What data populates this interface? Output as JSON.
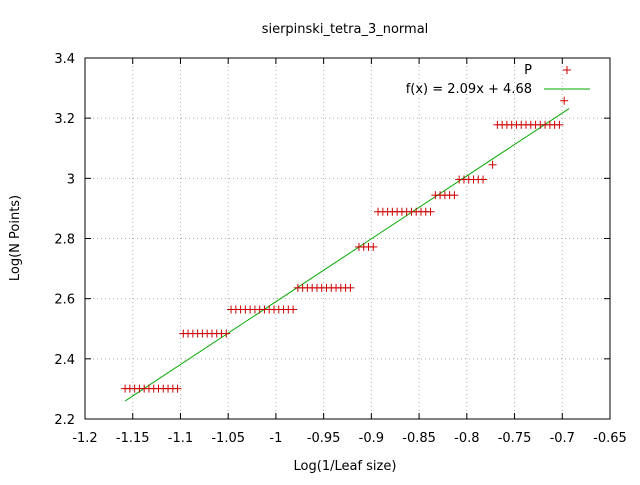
{
  "chart_data": {
    "type": "scatter",
    "title": "sierpinski_tetra_3_normal",
    "xlabel": "Log(1/Leaf size)",
    "ylabel": "Log(N Points)",
    "xlim": [
      -1.2,
      -0.65
    ],
    "ylim": [
      2.2,
      3.4
    ],
    "xticks": [
      -1.2,
      -1.15,
      -1.1,
      -1.05,
      -1.0,
      -0.95,
      -0.9,
      -0.85,
      -0.8,
      -0.75,
      -0.7,
      -0.65
    ],
    "xtick_labels": [
      "-1.2",
      "-1.15",
      "-1.1",
      "-1.05",
      "-1",
      "-0.95",
      "-0.9",
      "-0.85",
      "-0.8",
      "-0.75",
      "-0.7",
      "-0.65"
    ],
    "yticks": [
      2.2,
      2.4,
      2.6,
      2.8,
      3.0,
      3.2,
      3.4
    ],
    "ytick_labels": [
      "2.2",
      "2.4",
      "2.6",
      "2.8",
      "3",
      "3.2",
      "3.4"
    ],
    "grid": true,
    "legend_position": "top-right",
    "colors": {
      "points": "#cc0000",
      "fit": "#00aa00",
      "grid": "#b0b0b0"
    },
    "series": [
      {
        "name": "P",
        "kind": "points",
        "points": [
          [
            -1.158,
            2.301
          ],
          [
            -1.153,
            2.301
          ],
          [
            -1.148,
            2.301
          ],
          [
            -1.143,
            2.301
          ],
          [
            -1.138,
            2.301
          ],
          [
            -1.133,
            2.301
          ],
          [
            -1.128,
            2.301
          ],
          [
            -1.123,
            2.301
          ],
          [
            -1.118,
            2.301
          ],
          [
            -1.113,
            2.301
          ],
          [
            -1.108,
            2.301
          ],
          [
            -1.103,
            2.301
          ],
          [
            -1.097,
            2.484
          ],
          [
            -1.092,
            2.484
          ],
          [
            -1.087,
            2.484
          ],
          [
            -1.082,
            2.484
          ],
          [
            -1.077,
            2.484
          ],
          [
            -1.072,
            2.484
          ],
          [
            -1.067,
            2.484
          ],
          [
            -1.062,
            2.484
          ],
          [
            -1.057,
            2.484
          ],
          [
            -1.052,
            2.484
          ],
          [
            -1.047,
            2.564
          ],
          [
            -1.042,
            2.564
          ],
          [
            -1.037,
            2.564
          ],
          [
            -1.032,
            2.564
          ],
          [
            -1.027,
            2.564
          ],
          [
            -1.022,
            2.564
          ],
          [
            -1.017,
            2.564
          ],
          [
            -1.012,
            2.564
          ],
          [
            -1.007,
            2.564
          ],
          [
            -1.002,
            2.564
          ],
          [
            -0.997,
            2.564
          ],
          [
            -0.992,
            2.564
          ],
          [
            -0.987,
            2.564
          ],
          [
            -0.982,
            2.564
          ],
          [
            -0.977,
            2.636
          ],
          [
            -0.972,
            2.636
          ],
          [
            -0.967,
            2.636
          ],
          [
            -0.962,
            2.636
          ],
          [
            -0.957,
            2.636
          ],
          [
            -0.952,
            2.636
          ],
          [
            -0.947,
            2.636
          ],
          [
            -0.942,
            2.636
          ],
          [
            -0.937,
            2.636
          ],
          [
            -0.932,
            2.636
          ],
          [
            -0.927,
            2.636
          ],
          [
            -0.922,
            2.636
          ],
          [
            -0.913,
            2.772
          ],
          [
            -0.908,
            2.772
          ],
          [
            -0.903,
            2.772
          ],
          [
            -0.898,
            2.772
          ],
          [
            -0.893,
            2.889
          ],
          [
            -0.888,
            2.889
          ],
          [
            -0.883,
            2.889
          ],
          [
            -0.878,
            2.889
          ],
          [
            -0.873,
            2.889
          ],
          [
            -0.868,
            2.889
          ],
          [
            -0.863,
            2.889
          ],
          [
            -0.858,
            2.889
          ],
          [
            -0.853,
            2.889
          ],
          [
            -0.848,
            2.889
          ],
          [
            -0.843,
            2.889
          ],
          [
            -0.838,
            2.889
          ],
          [
            -0.833,
            2.944
          ],
          [
            -0.828,
            2.944
          ],
          [
            -0.823,
            2.944
          ],
          [
            -0.818,
            2.944
          ],
          [
            -0.813,
            2.944
          ],
          [
            -0.808,
            2.996
          ],
          [
            -0.803,
            2.996
          ],
          [
            -0.798,
            2.996
          ],
          [
            -0.793,
            2.996
          ],
          [
            -0.788,
            2.996
          ],
          [
            -0.783,
            2.996
          ],
          [
            -0.773,
            3.045
          ],
          [
            -0.768,
            3.178
          ],
          [
            -0.763,
            3.178
          ],
          [
            -0.758,
            3.178
          ],
          [
            -0.753,
            3.178
          ],
          [
            -0.748,
            3.178
          ],
          [
            -0.743,
            3.178
          ],
          [
            -0.738,
            3.178
          ],
          [
            -0.733,
            3.178
          ],
          [
            -0.728,
            3.178
          ],
          [
            -0.723,
            3.178
          ],
          [
            -0.718,
            3.178
          ],
          [
            -0.713,
            3.178
          ],
          [
            -0.708,
            3.178
          ],
          [
            -0.703,
            3.178
          ],
          [
            -0.698,
            3.258
          ]
        ]
      },
      {
        "name": "f(x) = 2.09x + 4.68",
        "kind": "fit",
        "slope": 2.09,
        "intercept": 4.68,
        "x_range": [
          -1.158,
          -0.693
        ]
      }
    ]
  }
}
